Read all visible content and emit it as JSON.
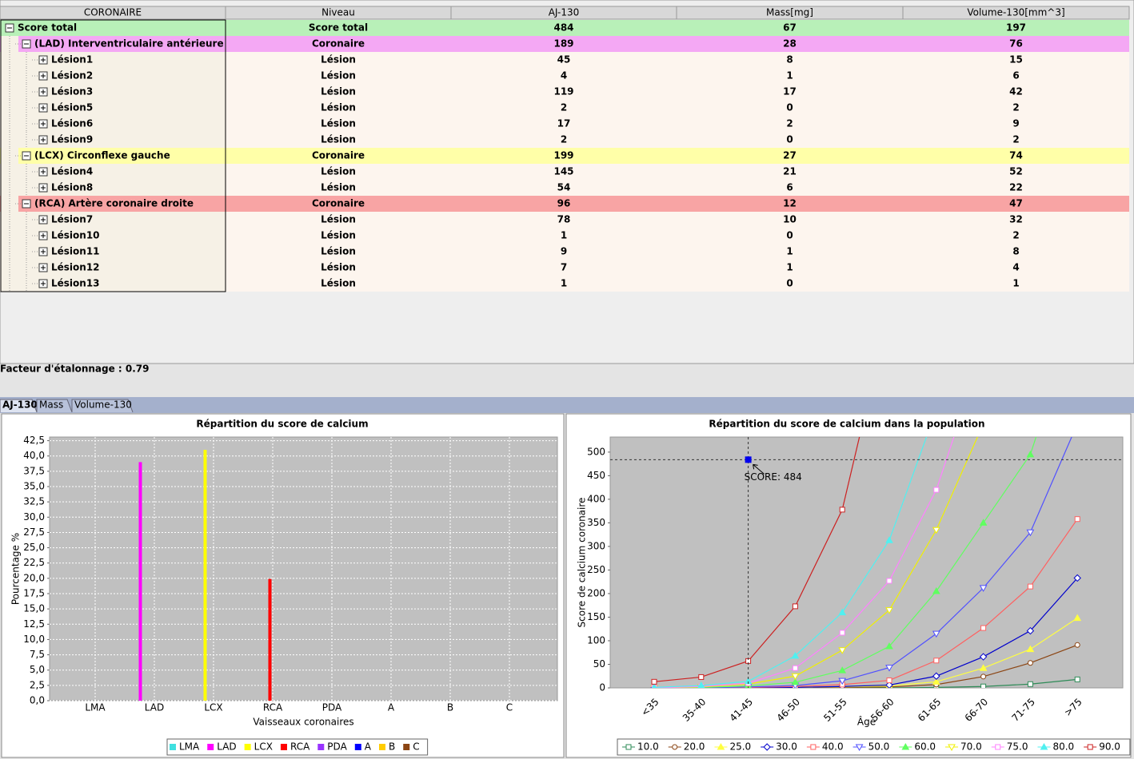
{
  "table": {
    "columns": [
      "CORONAIRE",
      "Niveau",
      "AJ-130",
      "Mass[mg]",
      "Volume-130[mm^3]"
    ],
    "tree": {
      "cells": [
        "Score total",
        "Score total",
        484,
        67,
        197
      ],
      "color": "#b8f0b8",
      "children": [
        {
          "cells": [
            "(LAD) Interventriculaire antérieure",
            "Coronaire",
            189,
            28,
            76
          ],
          "color": "#f4a8f4",
          "children": [
            {
              "cells": [
                "Lésion1",
                "Lésion",
                45,
                8,
                15
              ]
            },
            {
              "cells": [
                "Lésion2",
                "Lésion",
                4,
                1,
                6
              ]
            },
            {
              "cells": [
                "Lésion3",
                "Lésion",
                119,
                17,
                42
              ]
            },
            {
              "cells": [
                "Lésion5",
                "Lésion",
                2,
                0,
                2
              ]
            },
            {
              "cells": [
                "Lésion6",
                "Lésion",
                17,
                2,
                9
              ]
            },
            {
              "cells": [
                "Lésion9",
                "Lésion",
                2,
                0,
                2
              ]
            }
          ]
        },
        {
          "cells": [
            "(LCX) Circonflexe gauche",
            "Coronaire",
            199,
            27,
            74
          ],
          "color": "#ffffa8",
          "children": [
            {
              "cells": [
                "Lésion4",
                "Lésion",
                145,
                21,
                52
              ]
            },
            {
              "cells": [
                "Lésion8",
                "Lésion",
                54,
                6,
                22
              ]
            }
          ]
        },
        {
          "cells": [
            "(RCA) Artère coronaire droite",
            "Coronaire",
            96,
            12,
            47
          ],
          "color": "#f8a4a4",
          "children": [
            {
              "cells": [
                "Lésion7",
                "Lésion",
                78,
                10,
                32
              ]
            },
            {
              "cells": [
                "Lésion10",
                "Lésion",
                1,
                0,
                2
              ]
            },
            {
              "cells": [
                "Lésion11",
                "Lésion",
                9,
                1,
                8
              ]
            },
            {
              "cells": [
                "Lésion12",
                "Lésion",
                7,
                1,
                4
              ]
            },
            {
              "cells": [
                "Lésion13",
                "Lésion",
                1,
                0,
                1
              ]
            }
          ]
        }
      ]
    }
  },
  "calibration": "Facteur d'étalonnage : 0.79",
  "tabs": [
    "AJ-130",
    "Mass",
    "Volume-130"
  ],
  "chart_data": [
    {
      "type": "bar",
      "title": "Répartition du score de calcium",
      "x_label": "Vaisseaux coronaires",
      "y_label": "Pourcentage %",
      "categories": [
        "LMA",
        "LAD",
        "LCX",
        "RCA",
        "PDA",
        "A",
        "B",
        "C"
      ],
      "values": [
        0,
        39.0,
        41.0,
        19.9,
        0,
        0,
        0,
        0
      ],
      "colors": [
        "#40e0e0",
        "#ff00ff",
        "#ffff00",
        "#ff0000",
        "#9933ff",
        "#0000ff",
        "#ffcc00",
        "#8b4513"
      ],
      "ylim": [
        0,
        43.1
      ],
      "yticks": [
        {
          "value": 0,
          "label": "0,0"
        },
        {
          "value": 2.5,
          "label": "2,5"
        },
        {
          "value": 5,
          "label": "5,0"
        },
        {
          "value": 7.5,
          "label": "7,5"
        },
        {
          "value": 10,
          "label": "10,0"
        },
        {
          "value": 12.5,
          "label": "12,5"
        },
        {
          "value": 15,
          "label": "15,0"
        },
        {
          "value": 17.5,
          "label": "17,5"
        },
        {
          "value": 20,
          "label": "20,0"
        },
        {
          "value": 22.5,
          "label": "22,5"
        },
        {
          "value": 25,
          "label": "25,0"
        },
        {
          "value": 27.5,
          "label": "27,5"
        },
        {
          "value": 30,
          "label": "30,0"
        },
        {
          "value": 32.5,
          "label": "32,5"
        },
        {
          "value": 35,
          "label": "35,0"
        },
        {
          "value": 37.5,
          "label": "37,5"
        },
        {
          "value": 40,
          "label": "40,0"
        },
        {
          "value": 42.5,
          "label": "42,5"
        }
      ],
      "grid": true,
      "legend": "bottom"
    },
    {
      "type": "line",
      "title": "Répartition du score de calcium dans la population",
      "x_label": "Âge",
      "y_label": "Score de calcium coronaire",
      "categories": [
        "<35",
        "35-40",
        "41-45",
        "46-50",
        "51-55",
        "56-60",
        "61-65",
        "66-70",
        "71-75",
        ">75"
      ],
      "ylim": [
        0,
        532
      ],
      "yticks": [
        0,
        50,
        100,
        150,
        200,
        250,
        300,
        350,
        400,
        450,
        500
      ],
      "grid": false,
      "legend": "bottom",
      "series": [
        {
          "name": "10.0",
          "color": "#2e8b57",
          "marker": "square",
          "values": [
            0,
            0,
            0,
            0,
            0,
            0,
            1,
            3,
            8,
            18
          ]
        },
        {
          "name": "20.0",
          "color": "#8b4513",
          "marker": "circle",
          "values": [
            0,
            0,
            0,
            0,
            1,
            2,
            7,
            24,
            53,
            91
          ]
        },
        {
          "name": "25.0",
          "color": "#ffff40",
          "marker": "triangle",
          "values": [
            0,
            0,
            0,
            1,
            2,
            4,
            13,
            42,
            82,
            148
          ]
        },
        {
          "name": "30.0",
          "color": "#0000cc",
          "marker": "diamond",
          "values": [
            0,
            0,
            0,
            1,
            3,
            6,
            25,
            66,
            121,
            233
          ]
        },
        {
          "name": "40.0",
          "color": "#ff6060",
          "marker": "square",
          "values": [
            0,
            0,
            1,
            3,
            7,
            16,
            58,
            127,
            215,
            358
          ]
        },
        {
          "name": "50.0",
          "color": "#5050ff",
          "marker": "triangle-down",
          "values": [
            0,
            0,
            2,
            5,
            15,
            43,
            115,
            212,
            330,
            560
          ]
        },
        {
          "name": "60.0",
          "color": "#60ff60",
          "marker": "triangle",
          "values": [
            0,
            1,
            4,
            12,
            37,
            88,
            205,
            350,
            495,
            800
          ]
        },
        {
          "name": "70.0",
          "color": "#f0f000",
          "marker": "triangle-down",
          "values": [
            0,
            2,
            8,
            25,
            80,
            165,
            335,
            560,
            null,
            null
          ]
        },
        {
          "name": "75.0",
          "color": "#ff80ff",
          "marker": "square",
          "values": [
            0,
            3,
            10,
            42,
            117,
            227,
            420,
            720,
            null,
            null
          ]
        },
        {
          "name": "80.0",
          "color": "#50f0f0",
          "marker": "triangle",
          "values": [
            1,
            5,
            14,
            68,
            160,
            313,
            590,
            null,
            null,
            null
          ]
        },
        {
          "name": "90.0",
          "color": "#cc2020",
          "marker": "square",
          "values": [
            13,
            23,
            57,
            173,
            378,
            800,
            null,
            null,
            null,
            null
          ]
        }
      ],
      "marker": {
        "x": "41-45",
        "y": 484,
        "label": "SCORE: 484",
        "color": "#0000ee"
      }
    }
  ]
}
